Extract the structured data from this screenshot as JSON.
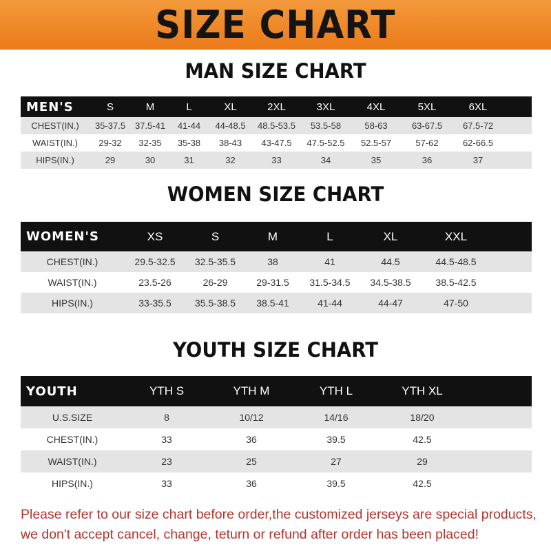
{
  "title": "SIZE CHART",
  "men": {
    "title": "MAN SIZE CHART",
    "header": [
      "MEN'S",
      "S",
      "M",
      "L",
      "XL",
      "2XL",
      "3XL",
      "4XL",
      "5XL",
      "6XL"
    ],
    "rows": [
      [
        "CHEST(IN.)",
        "35-37.5",
        "37.5-41",
        "41-44",
        "44-48.5",
        "48.5-53.5",
        "53.5-58",
        "58-63",
        "63-67.5",
        "67.5-72"
      ],
      [
        "WAIST(IN.)",
        "29-32",
        "32-35",
        "35-38",
        "38-43",
        "43-47.5",
        "47.5-52.5",
        "52.5-57",
        "57-62",
        "62-66.5"
      ],
      [
        "HIPS(IN.)",
        "29",
        "30",
        "31",
        "32",
        "33",
        "34",
        "35",
        "36",
        "37"
      ]
    ]
  },
  "women": {
    "title": "WOMEN SIZE CHART",
    "header": [
      "WOMEN'S",
      "XS",
      "S",
      "M",
      "L",
      "XL",
      "XXL"
    ],
    "rows": [
      [
        "CHEST(IN.)",
        "29.5-32.5",
        "32.5-35.5",
        "38",
        "41",
        "44.5",
        "44.5-48.5"
      ],
      [
        "WAIST(IN.)",
        "23.5-26",
        "26-29",
        "29-31.5",
        "31.5-34.5",
        "34.5-38.5",
        "38.5-42.5"
      ],
      [
        "HIPS(IN.)",
        "33-35.5",
        "35.5-38.5",
        "38.5-41",
        "41-44",
        "44-47",
        "47-50"
      ]
    ]
  },
  "youth": {
    "title": "YOUTH SIZE CHART",
    "header": [
      "YOUTH",
      "YTH S",
      "YTH M",
      "YTH L",
      "YTH XL"
    ],
    "rows": [
      [
        "U.S.SIZE",
        "8",
        "10/12",
        "14/16",
        "18/20"
      ],
      [
        "CHEST(IN.)",
        "33",
        "36",
        "39.5",
        "42.5"
      ],
      [
        "WAIST(IN.)",
        "23",
        "25",
        "27",
        "29"
      ],
      [
        "HIPS(IN.)",
        "33",
        "36",
        "39.5",
        "42.5"
      ]
    ]
  },
  "notice": [
    "Please refer to our size chart before order,the customized jerseys are special products,",
    "we don't accept cancel, change, teturn or refund after order has been placed!"
  ],
  "colors": {
    "banner": "#ec7a18",
    "header_row": "#111111",
    "stripe": "#e4e4e4",
    "notice": "#b8322a"
  }
}
